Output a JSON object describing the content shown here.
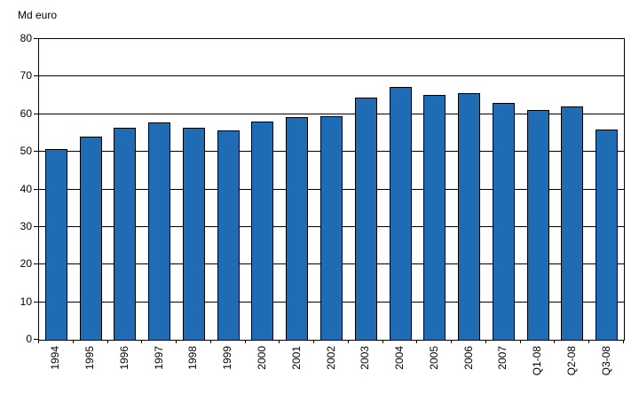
{
  "chart_data": {
    "type": "bar",
    "title": "Md euro",
    "categories": [
      "1994",
      "1995",
      "1996",
      "1997",
      "1998",
      "1999",
      "2000",
      "2001",
      "2002",
      "2003",
      "2004",
      "2005",
      "2006",
      "2007",
      "Q1-08",
      "Q2-08",
      "Q3-08"
    ],
    "values": [
      50.7,
      54.1,
      56.4,
      57.7,
      56.3,
      55.8,
      58.0,
      59.2,
      59.4,
      64.4,
      67.3,
      65.1,
      65.6,
      63.1,
      61.1,
      62.1,
      55.9
    ],
    "xlabel": "",
    "ylabel": "Md euro",
    "ylim": [
      0,
      80
    ],
    "ytick_step": 10,
    "ytick_labels": [
      "0",
      "10",
      "20",
      "30",
      "40",
      "50",
      "60",
      "70",
      "80"
    ],
    "grid": "horizontal",
    "legend": "none",
    "bar_color": "#1F6BB4",
    "bar_border_color": "#000000",
    "axis_color": "#000000",
    "background_color": "#FFFFFF"
  }
}
